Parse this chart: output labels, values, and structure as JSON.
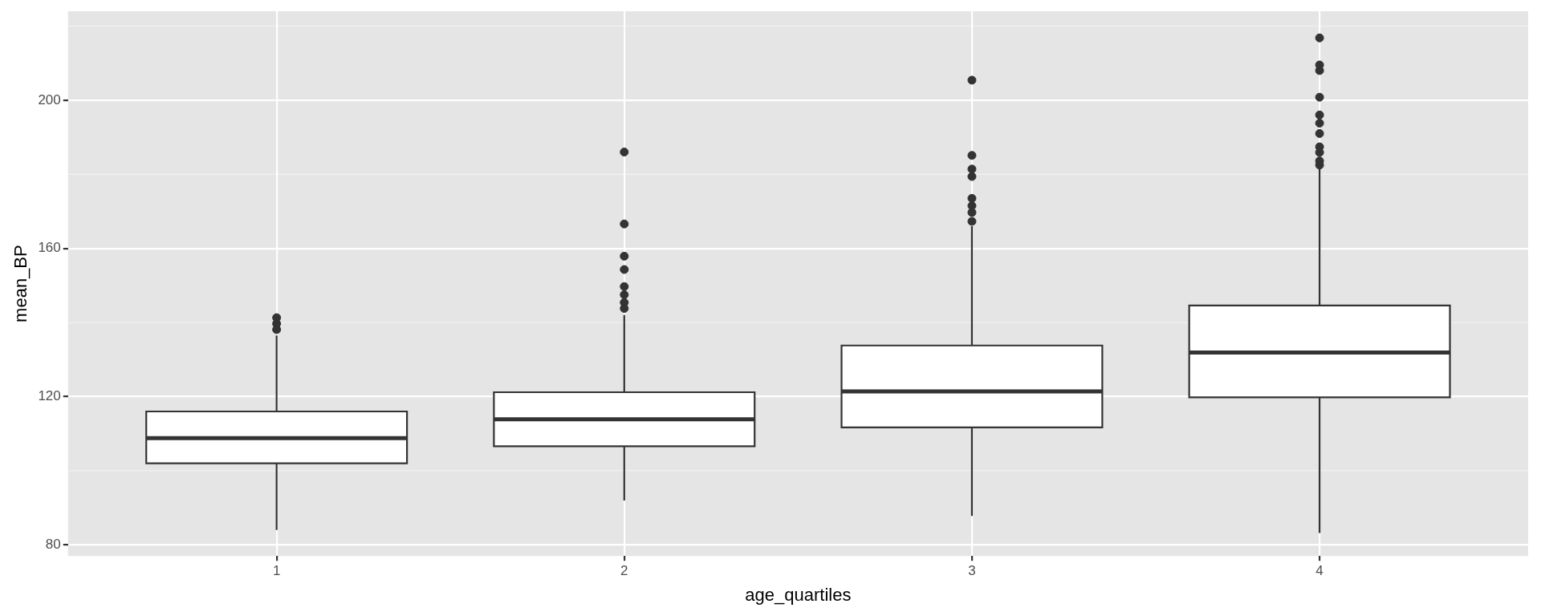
{
  "chart_data": {
    "type": "box",
    "xlabel": "age_quartiles",
    "ylabel": "mean_BP",
    "categories": [
      "1",
      "2",
      "3",
      "4"
    ],
    "ylim": [
      77,
      224
    ],
    "yticks": [
      80,
      120,
      160,
      200
    ],
    "grid": true,
    "legend": false,
    "series": [
      {
        "color": "#ffffff",
        "boxes": [
          {
            "low": 84,
            "q1": 102,
            "median": 108.8,
            "q3": 116,
            "high": 136.5,
            "outliers": [
              138.1,
              139.7,
              141.3
            ]
          },
          {
            "low": 92,
            "q1": 106.6,
            "median": 113.9,
            "q3": 121.2,
            "high": 142,
            "outliers": [
              143.8,
              145.4,
              147.5,
              149.7,
              154.3,
              157.9,
              166.6,
              186
            ]
          },
          {
            "low": 87.8,
            "q1": 111.7,
            "median": 121.4,
            "q3": 133.8,
            "high": 166,
            "outliers": [
              167.3,
              169.7,
              171.5,
              173.5,
              179.4,
              181.4,
              185.1,
              205.4
            ]
          },
          {
            "low": 83.2,
            "q1": 119.8,
            "median": 131.9,
            "q3": 144.6,
            "high": 182,
            "outliers": [
              182.5,
              183.6,
              185.9,
              187.4,
              191,
              193.8,
              196,
              200.8,
              208,
              209.5,
              216.8
            ]
          }
        ]
      }
    ]
  }
}
